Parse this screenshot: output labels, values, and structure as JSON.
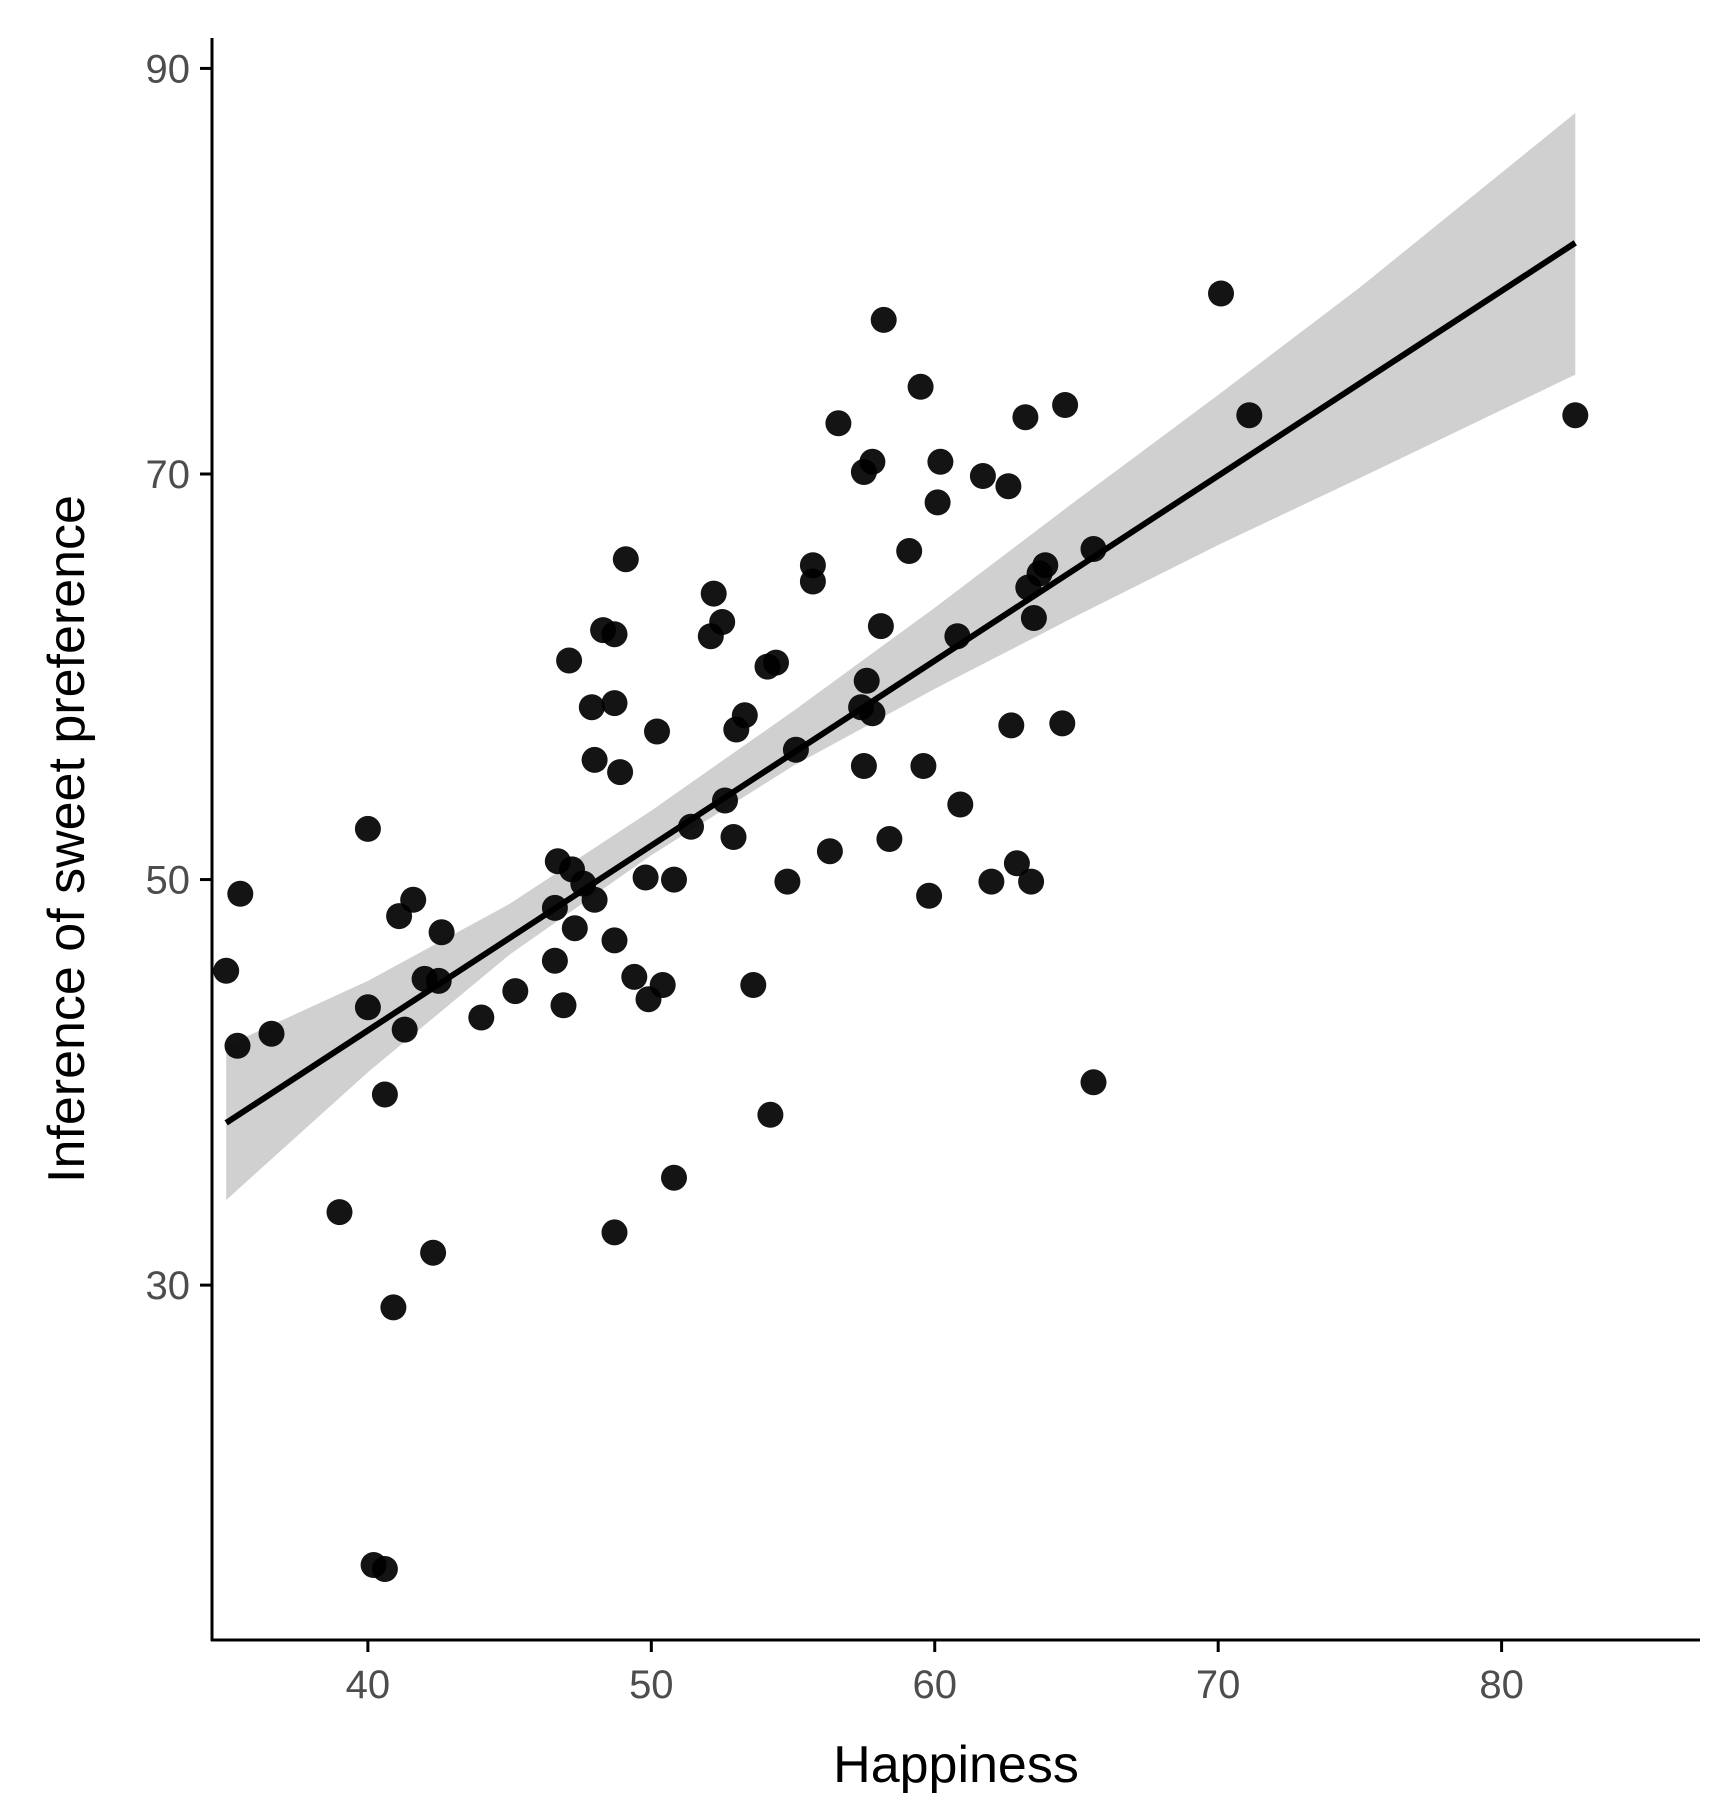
{
  "chart_data": {
    "type": "scatter",
    "title": "",
    "xlabel": "Happiness",
    "ylabel": "Inference of sweet preference",
    "xlim": [
      34.5,
      87
    ],
    "ylim": [
      12.5,
      91.5
    ],
    "x_ticks": [
      40,
      50,
      60,
      70,
      80
    ],
    "y_ticks": [
      30,
      50,
      70,
      90
    ],
    "grid": false,
    "legend": "none",
    "points": [
      {
        "x": 35.0,
        "y": 45.5
      },
      {
        "x": 35.5,
        "y": 49.3
      },
      {
        "x": 35.4,
        "y": 41.8
      },
      {
        "x": 36.6,
        "y": 42.4
      },
      {
        "x": 39.0,
        "y": 33.6
      },
      {
        "x": 40.0,
        "y": 52.5
      },
      {
        "x": 40.0,
        "y": 43.7
      },
      {
        "x": 40.2,
        "y": 16.2
      },
      {
        "x": 40.6,
        "y": 16.0
      },
      {
        "x": 40.6,
        "y": 39.4
      },
      {
        "x": 40.9,
        "y": 28.9
      },
      {
        "x": 41.1,
        "y": 48.2
      },
      {
        "x": 41.3,
        "y": 42.6
      },
      {
        "x": 41.6,
        "y": 49.0
      },
      {
        "x": 42.0,
        "y": 45.1
      },
      {
        "x": 42.3,
        "y": 31.6
      },
      {
        "x": 42.5,
        "y": 45.0
      },
      {
        "x": 42.6,
        "y": 47.4
      },
      {
        "x": 44.0,
        "y": 43.2
      },
      {
        "x": 45.2,
        "y": 44.5
      },
      {
        "x": 46.6,
        "y": 46.0
      },
      {
        "x": 46.6,
        "y": 48.6
      },
      {
        "x": 46.7,
        "y": 50.9
      },
      {
        "x": 46.9,
        "y": 43.8
      },
      {
        "x": 47.1,
        "y": 60.8
      },
      {
        "x": 47.2,
        "y": 50.5
      },
      {
        "x": 47.3,
        "y": 47.6
      },
      {
        "x": 47.6,
        "y": 49.8
      },
      {
        "x": 47.9,
        "y": 58.5
      },
      {
        "x": 48.0,
        "y": 49.0
      },
      {
        "x": 48.0,
        "y": 55.9
      },
      {
        "x": 48.3,
        "y": 62.3
      },
      {
        "x": 48.7,
        "y": 62.1
      },
      {
        "x": 48.7,
        "y": 58.7
      },
      {
        "x": 48.7,
        "y": 47.0
      },
      {
        "x": 48.7,
        "y": 32.6
      },
      {
        "x": 48.9,
        "y": 55.3
      },
      {
        "x": 49.1,
        "y": 65.8
      },
      {
        "x": 49.4,
        "y": 45.2
      },
      {
        "x": 49.8,
        "y": 50.1
      },
      {
        "x": 49.9,
        "y": 44.1
      },
      {
        "x": 50.2,
        "y": 57.3
      },
      {
        "x": 50.4,
        "y": 44.8
      },
      {
        "x": 50.8,
        "y": 50.0
      },
      {
        "x": 50.8,
        "y": 35.3
      },
      {
        "x": 51.4,
        "y": 52.6
      },
      {
        "x": 52.1,
        "y": 62.0
      },
      {
        "x": 52.2,
        "y": 64.1
      },
      {
        "x": 52.5,
        "y": 62.7
      },
      {
        "x": 52.6,
        "y": 53.9
      },
      {
        "x": 52.9,
        "y": 52.1
      },
      {
        "x": 53.0,
        "y": 57.4
      },
      {
        "x": 53.3,
        "y": 58.1
      },
      {
        "x": 53.6,
        "y": 44.8
      },
      {
        "x": 54.1,
        "y": 60.5
      },
      {
        "x": 54.2,
        "y": 38.4
      },
      {
        "x": 54.4,
        "y": 60.7
      },
      {
        "x": 54.8,
        "y": 49.9
      },
      {
        "x": 55.1,
        "y": 56.4
      },
      {
        "x": 55.7,
        "y": 65.5
      },
      {
        "x": 55.7,
        "y": 64.7
      },
      {
        "x": 56.3,
        "y": 51.4
      },
      {
        "x": 56.6,
        "y": 72.5
      },
      {
        "x": 57.4,
        "y": 58.5
      },
      {
        "x": 57.5,
        "y": 70.1
      },
      {
        "x": 57.5,
        "y": 55.6
      },
      {
        "x": 57.6,
        "y": 59.8
      },
      {
        "x": 57.8,
        "y": 70.6
      },
      {
        "x": 57.8,
        "y": 58.2
      },
      {
        "x": 58.1,
        "y": 62.5
      },
      {
        "x": 58.2,
        "y": 77.6
      },
      {
        "x": 58.4,
        "y": 52.0
      },
      {
        "x": 59.1,
        "y": 66.2
      },
      {
        "x": 59.5,
        "y": 74.3
      },
      {
        "x": 59.6,
        "y": 55.6
      },
      {
        "x": 59.8,
        "y": 49.2
      },
      {
        "x": 60.2,
        "y": 70.6
      },
      {
        "x": 60.1,
        "y": 68.6
      },
      {
        "x": 60.8,
        "y": 62.0
      },
      {
        "x": 60.9,
        "y": 53.7
      },
      {
        "x": 61.7,
        "y": 69.9
      },
      {
        "x": 62.0,
        "y": 49.9
      },
      {
        "x": 62.6,
        "y": 69.4
      },
      {
        "x": 62.7,
        "y": 57.6
      },
      {
        "x": 62.9,
        "y": 50.8
      },
      {
        "x": 63.2,
        "y": 72.8
      },
      {
        "x": 63.3,
        "y": 64.4
      },
      {
        "x": 63.4,
        "y": 49.9
      },
      {
        "x": 63.5,
        "y": 62.9
      },
      {
        "x": 63.7,
        "y": 65.1
      },
      {
        "x": 63.9,
        "y": 65.5
      },
      {
        "x": 64.5,
        "y": 57.7
      },
      {
        "x": 64.6,
        "y": 73.4
      },
      {
        "x": 65.6,
        "y": 66.3
      },
      {
        "x": 65.6,
        "y": 40.0
      },
      {
        "x": 70.1,
        "y": 78.9
      },
      {
        "x": 71.1,
        "y": 72.9
      },
      {
        "x": 82.6,
        "y": 72.9
      }
    ],
    "fit_line": {
      "x": [
        35.0,
        82.6
      ],
      "y": [
        38.0,
        81.4
      ]
    },
    "confidence_band": {
      "x": [
        35.0,
        40,
        45,
        50,
        55,
        60,
        65,
        70,
        75,
        82.6
      ],
      "lower": [
        34.2,
        40.5,
        46.3,
        51.2,
        55.6,
        59.4,
        63.0,
        66.5,
        69.8,
        74.9
      ],
      "upper": [
        41.8,
        45.0,
        48.8,
        53.4,
        58.3,
        63.4,
        68.7,
        73.9,
        79.2,
        87.8
      ]
    },
    "colors": {
      "point": "#000000",
      "fit_line": "#000000",
      "band": "#c8c8c8",
      "axis": "#000000",
      "tick_label": "#4d4d4d"
    }
  }
}
